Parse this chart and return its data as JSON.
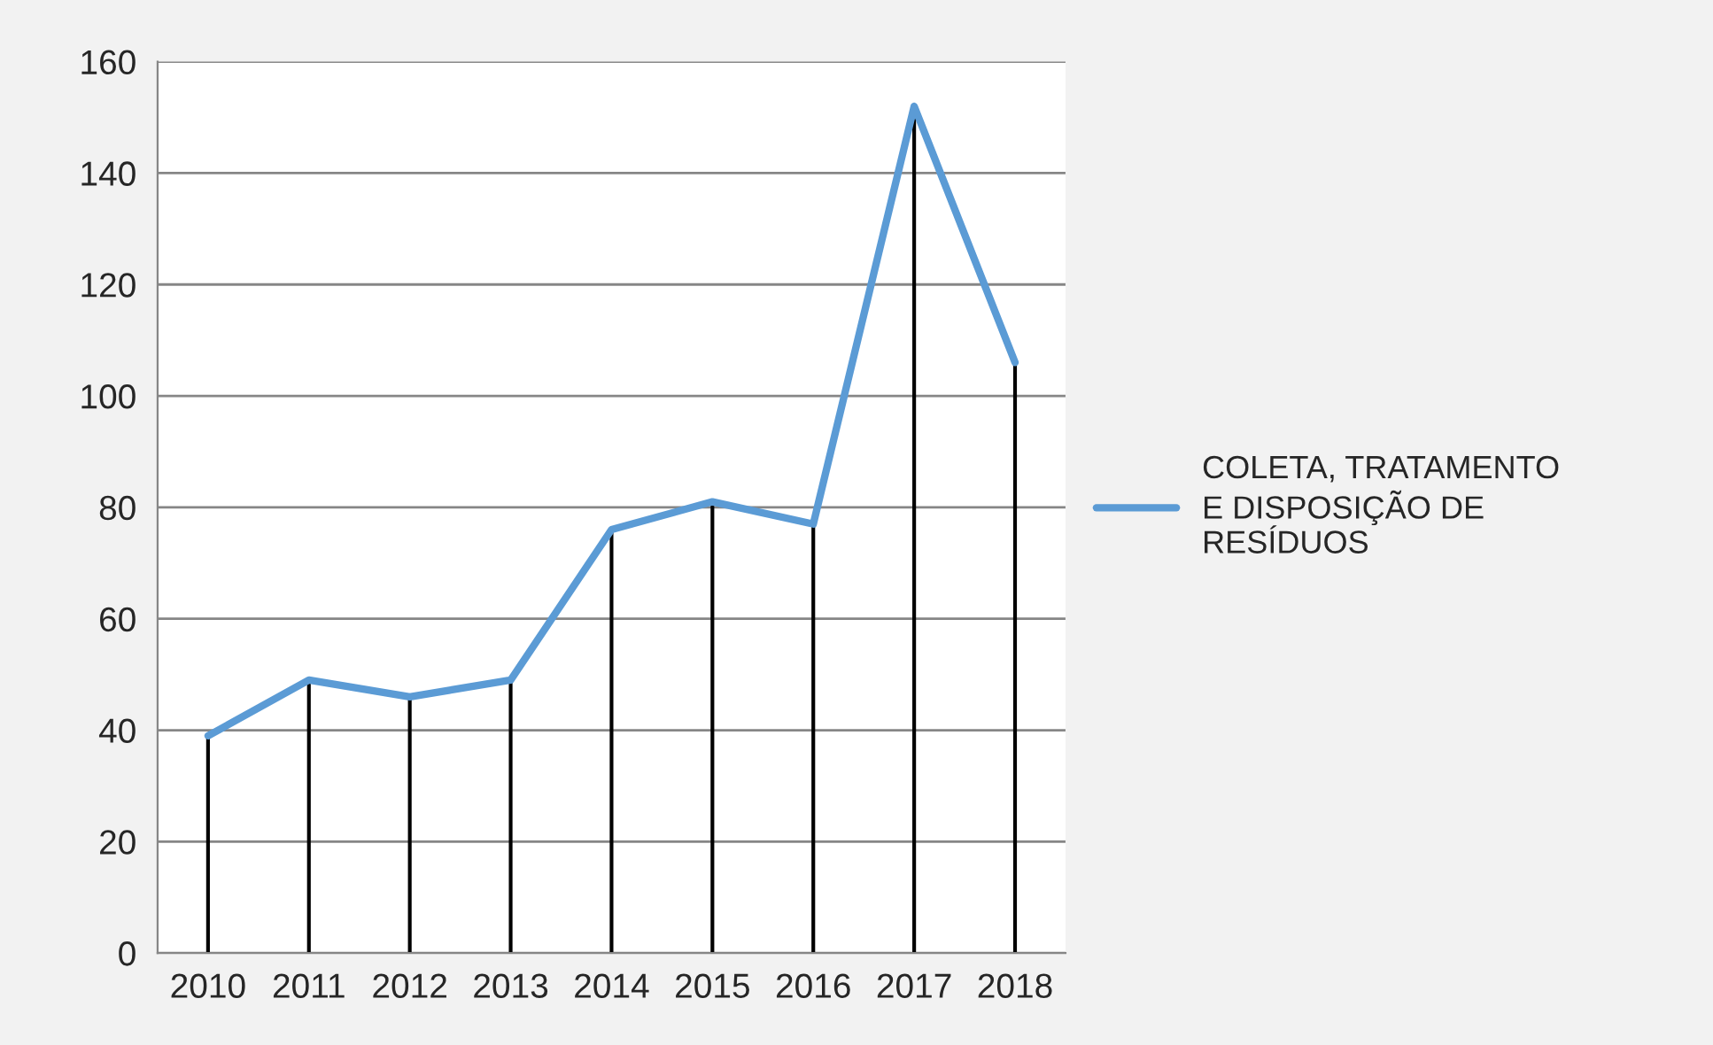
{
  "chart_data": {
    "type": "line",
    "categories": [
      "2010",
      "2011",
      "2012",
      "2013",
      "2014",
      "2015",
      "2016",
      "2017",
      "2018"
    ],
    "series": [
      {
        "name": "COLETA, TRATAMENTO E DISPOSIÇÃO DE RESÍDUOS",
        "color": "#5b9bd5",
        "values": [
          39,
          49,
          46,
          49,
          76,
          81,
          77,
          152,
          106
        ],
        "errors": [
          [
            0,
            39
          ],
          [
            0,
            49
          ],
          [
            0,
            46
          ],
          [
            0,
            49
          ],
          [
            0,
            76
          ],
          [
            0,
            81
          ],
          [
            0,
            77
          ],
          [
            0,
            152
          ],
          [
            0,
            106
          ]
        ]
      }
    ],
    "ylim": [
      0,
      160
    ],
    "yticks": [
      0,
      20,
      40,
      60,
      80,
      100,
      120,
      140,
      160
    ],
    "grid": "y",
    "legend": "right",
    "marker": "none",
    "line_style": "solid"
  }
}
